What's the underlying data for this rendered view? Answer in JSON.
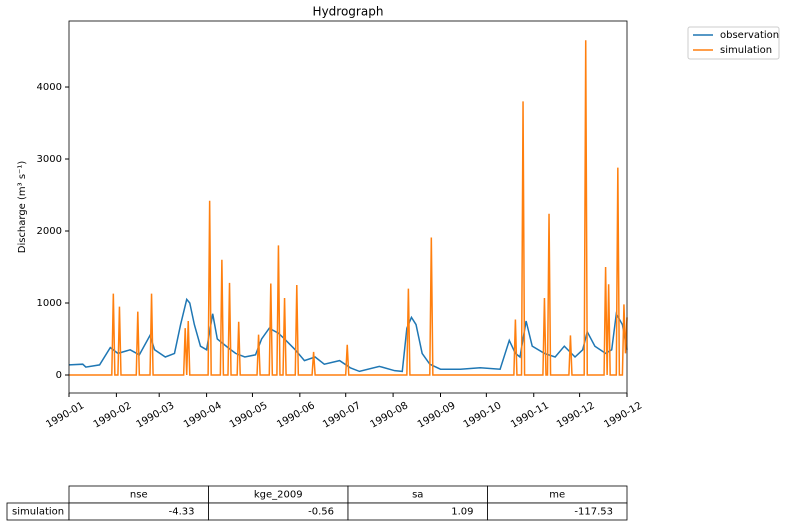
{
  "chart_data": {
    "type": "line",
    "title": "Hydrograph",
    "y_label": "Discharge (m³ s⁻¹)",
    "xlim": [
      0,
      365
    ],
    "ylim": [
      -250,
      4917
    ],
    "xticks": [
      {
        "value": 0,
        "label": "1990-01"
      },
      {
        "value": 31,
        "label": "1990-02"
      },
      {
        "value": 59,
        "label": "1990-03"
      },
      {
        "value": 90,
        "label": "1990-04"
      },
      {
        "value": 120,
        "label": "1990-05"
      },
      {
        "value": 151,
        "label": "1990-06"
      },
      {
        "value": 181,
        "label": "1990-07"
      },
      {
        "value": 212,
        "label": "1990-08"
      },
      {
        "value": 243,
        "label": "1990-09"
      },
      {
        "value": 273,
        "label": "1990-10"
      },
      {
        "value": 304,
        "label": "1990-11"
      },
      {
        "value": 334,
        "label": "1990-12"
      },
      {
        "value": 365,
        "label": "1990-12"
      }
    ],
    "yticks": [
      0,
      1000,
      2000,
      3000,
      4000
    ],
    "legend": "outside-upper-right",
    "series": [
      {
        "name": "observation",
        "color": "#1f77b4",
        "x": [
          0,
          9,
          11,
          20,
          27,
          32,
          40,
          46,
          53,
          56,
          63,
          69,
          73,
          77,
          79,
          82,
          86,
          90,
          94,
          97,
          104,
          109,
          115,
          122,
          126,
          131,
          137,
          141,
          148,
          154,
          161,
          167,
          177,
          184,
          190,
          203,
          213,
          218,
          221,
          224,
          227,
          231,
          236,
          243,
          256,
          269,
          282,
          288,
          292,
          295,
          299,
          303,
          311,
          318,
          324,
          331,
          336,
          339,
          344,
          351,
          355,
          358,
          362,
          365
        ],
        "values": [
          140,
          150,
          110,
          140,
          380,
          300,
          350,
          280,
          550,
          350,
          250,
          300,
          700,
          1050,
          1000,
          700,
          400,
          350,
          850,
          500,
          380,
          300,
          250,
          280,
          500,
          650,
          580,
          500,
          350,
          200,
          250,
          150,
          200,
          100,
          50,
          120,
          60,
          50,
          650,
          800,
          700,
          300,
          150,
          80,
          80,
          100,
          80,
          480,
          300,
          250,
          750,
          400,
          300,
          250,
          400,
          250,
          350,
          600,
          400,
          300,
          350,
          850,
          700,
          350
        ]
      },
      {
        "name": "simulation",
        "color": "#ff7f0e",
        "x": [
          0,
          28,
          29,
          30,
          32,
          33,
          34,
          44,
          45,
          46,
          53,
          54,
          55,
          75,
          76,
          77,
          78,
          79,
          91,
          92,
          93,
          99,
          100,
          101,
          104,
          105,
          106,
          110,
          111,
          112,
          123,
          124,
          125,
          131,
          132,
          133,
          136,
          137,
          138,
          140,
          141,
          142,
          148,
          149,
          150,
          159,
          160,
          161,
          181,
          182,
          183,
          221,
          222,
          223,
          236,
          237,
          238,
          291,
          292,
          293,
          296,
          297,
          298,
          310,
          311,
          312,
          313,
          314,
          315,
          327,
          328,
          329,
          337,
          338,
          339,
          350,
          351,
          352,
          353,
          354,
          358,
          359,
          360,
          362,
          363,
          364,
          365
        ],
        "values": [
          0,
          0,
          1130,
          0,
          0,
          950,
          0,
          0,
          880,
          0,
          0,
          1130,
          0,
          0,
          650,
          0,
          750,
          0,
          0,
          2420,
          0,
          0,
          1600,
          0,
          0,
          1280,
          0,
          0,
          740,
          0,
          0,
          560,
          0,
          0,
          1270,
          0,
          0,
          1800,
          0,
          0,
          1070,
          0,
          0,
          1250,
          0,
          0,
          320,
          0,
          0,
          420,
          0,
          0,
          1200,
          0,
          0,
          1910,
          0,
          0,
          770,
          0,
          0,
          3800,
          0,
          0,
          1070,
          0,
          0,
          2240,
          0,
          0,
          550,
          0,
          0,
          4650,
          0,
          0,
          1500,
          0,
          1260,
          0,
          0,
          2880,
          0,
          0,
          980,
          300,
          800
        ]
      }
    ],
    "table": {
      "columns": [
        "nse",
        "kge_2009",
        "sa",
        "me"
      ],
      "rows": [
        {
          "label": "simulation",
          "values": [
            -4.33,
            -0.56,
            1.09,
            -117.53
          ]
        }
      ]
    }
  }
}
